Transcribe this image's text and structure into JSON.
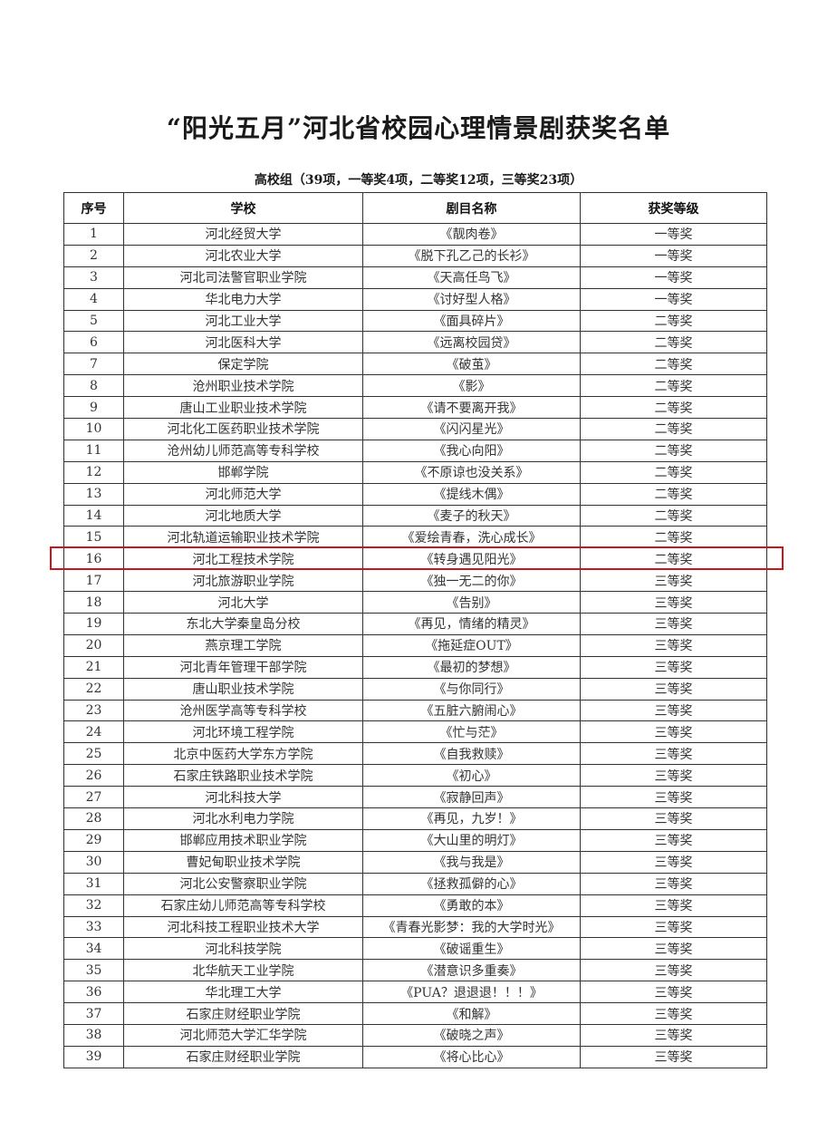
{
  "title": "“阳光五月”河北省校园心理情景剧获奖名单",
  "subtitle": "高校组（39项，一等奖4项，二等奖12项，三等奖23项）",
  "highlight_color": "#c8161d",
  "highlighted_row": "16",
  "table": {
    "headers": [
      "序号",
      "学校",
      "剧目名称",
      "获奖等级"
    ],
    "rows": [
      [
        "1",
        "河北经贸大学",
        "《靓肉卷》",
        "一等奖"
      ],
      [
        "2",
        "河北农业大学",
        "《脱下孔乙己的长衫》",
        "一等奖"
      ],
      [
        "3",
        "河北司法警官职业学院",
        "《天高任鸟飞》",
        "一等奖"
      ],
      [
        "4",
        "华北电力大学",
        "《讨好型人格》",
        "一等奖"
      ],
      [
        "5",
        "河北工业大学",
        "《面具碎片》",
        "二等奖"
      ],
      [
        "6",
        "河北医科大学",
        "《远离校园贷》",
        "二等奖"
      ],
      [
        "7",
        "保定学院",
        "《破茧》",
        "二等奖"
      ],
      [
        "8",
        "沧州职业技术学院",
        "《影》",
        "二等奖"
      ],
      [
        "9",
        "唐山工业职业技术学院",
        "《请不要离开我》",
        "二等奖"
      ],
      [
        "10",
        "河北化工医药职业技术学院",
        "《闪闪星光》",
        "二等奖"
      ],
      [
        "11",
        "沧州幼儿师范高等专科学校",
        "《我心向阳》",
        "二等奖"
      ],
      [
        "12",
        "邯郸学院",
        "《不原谅也没关系》",
        "二等奖"
      ],
      [
        "13",
        "河北师范大学",
        "《提线木偶》",
        "二等奖"
      ],
      [
        "14",
        "河北地质大学",
        "《麦子的秋天》",
        "二等奖"
      ],
      [
        "15",
        "河北轨道运输职业技术学院",
        "《爱绘青春，洗心成长》",
        "二等奖"
      ],
      [
        "16",
        "河北工程技术学院",
        "《转身遇见阳光》",
        "二等奖"
      ],
      [
        "17",
        "河北旅游职业学院",
        "《独一无二的你》",
        "三等奖"
      ],
      [
        "18",
        "河北大学",
        "《告别》",
        "三等奖"
      ],
      [
        "19",
        "东北大学秦皇岛分校",
        "《再见，情绪的精灵》",
        "三等奖"
      ],
      [
        "20",
        "燕京理工学院",
        "《拖延症OUT》",
        "三等奖"
      ],
      [
        "21",
        "河北青年管理干部学院",
        "《最初的梦想》",
        "三等奖"
      ],
      [
        "22",
        "唐山职业技术学院",
        "《与你同行》",
        "三等奖"
      ],
      [
        "23",
        "沧州医学高等专科学校",
        "《五脏六腑闹心》",
        "三等奖"
      ],
      [
        "24",
        "河北环境工程学院",
        "《忙与茫》",
        "三等奖"
      ],
      [
        "25",
        "北京中医药大学东方学院",
        "《自我救赎》",
        "三等奖"
      ],
      [
        "26",
        "石家庄铁路职业技术学院",
        "《初心》",
        "三等奖"
      ],
      [
        "27",
        "河北科技大学",
        "《寂静回声》",
        "三等奖"
      ],
      [
        "28",
        "河北水利电力学院",
        "《再见，九岁！》",
        "三等奖"
      ],
      [
        "29",
        "邯郸应用技术职业学院",
        "《大山里的明灯》",
        "三等奖"
      ],
      [
        "30",
        "曹妃甸职业技术学院",
        "《我与我是》",
        "三等奖"
      ],
      [
        "31",
        "河北公安警察职业学院",
        "《拯救孤僻的心》",
        "三等奖"
      ],
      [
        "32",
        "石家庄幼儿师范高等专科学校",
        "《勇敢的本》",
        "三等奖"
      ],
      [
        "33",
        "河北科技工程职业技术大学",
        "《青春光影梦：我的大学时光》",
        "三等奖"
      ],
      [
        "34",
        "河北科技学院",
        "《破谣重生》",
        "三等奖"
      ],
      [
        "35",
        "北华航天工业学院",
        "《潜意识多重奏》",
        "三等奖"
      ],
      [
        "36",
        "华北理工大学",
        "《PUA？退退退！！！》",
        "三等奖"
      ],
      [
        "37",
        "石家庄财经职业学院",
        "《和解》",
        "三等奖"
      ],
      [
        "38",
        "河北师范大学汇华学院",
        "《破晓之声》",
        "三等奖"
      ],
      [
        "39",
        "石家庄财经职业学院",
        "《将心比心》",
        "三等奖"
      ]
    ]
  }
}
